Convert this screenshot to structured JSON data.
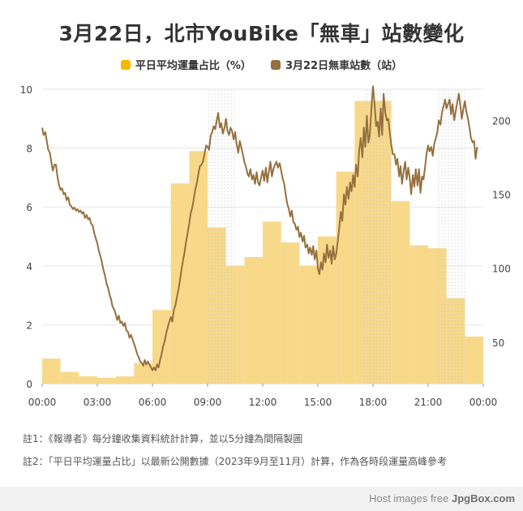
{
  "title": "3月22日，北市YouBike「無車」站數變化",
  "notes": [
    "註1：《報導者》每分鐘收集資料統計計算，並以5分鐘為間隔製圖",
    "註2：「平日平均運量占比」以最新公開數據（2023年9月至11月）計算，作為各時段運量高峰參考"
  ],
  "watermark": {
    "prefix": "Host images free",
    "brand": "JpgBox.com"
  },
  "chart_data": {
    "type": "bar+line",
    "legend_placement": "top-center",
    "colors": {
      "bar": "#f8d98a",
      "bar_legend": "#f5b800",
      "line": "#96703e",
      "grid": "#e5e5e5",
      "shade": "#cfcfcf"
    },
    "x_ticks": [
      "00:00",
      "03:00",
      "06:00",
      "09:00",
      "12:00",
      "15:00",
      "18:00",
      "21:00",
      "00:00"
    ],
    "x_range_hours": [
      0,
      24
    ],
    "y_left": {
      "ticks": [
        0,
        2,
        4,
        6,
        8,
        10
      ],
      "range": [
        0,
        10
      ]
    },
    "y_right": {
      "ticks": [
        50,
        100,
        150,
        200
      ],
      "range": [
        22,
        221
      ]
    },
    "peak_shading_hours": [
      [
        9,
        10.5
      ],
      [
        17.5,
        19
      ],
      [
        21.5,
        23
      ]
    ],
    "series": [
      {
        "name": "平日平均運量占比（%）",
        "axis": "left",
        "type": "bar",
        "hours": [
          0,
          1,
          2,
          3,
          4,
          5,
          6,
          7,
          8,
          9,
          10,
          11,
          12,
          13,
          14,
          15,
          16,
          17,
          18,
          19,
          20,
          21,
          22,
          23
        ],
        "values": [
          0.85,
          0.4,
          0.25,
          0.2,
          0.25,
          0.7,
          2.5,
          6.8,
          7.9,
          5.3,
          4.0,
          4.3,
          5.5,
          4.8,
          4.0,
          5.0,
          7.2,
          9.6,
          9.6,
          6.2,
          4.7,
          4.6,
          2.9,
          1.6
        ]
      },
      {
        "name": "3月22日無車站數（站）",
        "axis": "right",
        "type": "line",
        "points": [
          [
            0,
            195
          ],
          [
            0.08,
            190
          ],
          [
            0.17,
            192
          ],
          [
            0.25,
            186
          ],
          [
            0.33,
            180
          ],
          [
            0.42,
            178
          ],
          [
            0.5,
            172
          ],
          [
            0.58,
            166
          ],
          [
            0.67,
            170
          ],
          [
            0.75,
            170
          ],
          [
            0.83,
            162
          ],
          [
            0.92,
            156
          ],
          [
            1.0,
            153
          ],
          [
            1.08,
            154
          ],
          [
            1.17,
            150
          ],
          [
            1.25,
            151
          ],
          [
            1.33,
            146
          ],
          [
            1.42,
            148
          ],
          [
            1.5,
            143
          ],
          [
            1.58,
            142
          ],
          [
            1.67,
            140
          ],
          [
            1.75,
            141
          ],
          [
            1.83,
            139
          ],
          [
            1.92,
            140
          ],
          [
            2.0,
            138
          ],
          [
            2.08,
            139
          ],
          [
            2.17,
            137
          ],
          [
            2.25,
            138
          ],
          [
            2.33,
            134
          ],
          [
            2.42,
            136
          ],
          [
            2.5,
            133
          ],
          [
            2.58,
            134
          ],
          [
            2.67,
            130
          ],
          [
            2.75,
            129
          ],
          [
            2.83,
            124
          ],
          [
            2.92,
            120
          ],
          [
            3.0,
            117
          ],
          [
            3.08,
            112
          ],
          [
            3.17,
            108
          ],
          [
            3.25,
            104
          ],
          [
            3.33,
            99
          ],
          [
            3.42,
            95
          ],
          [
            3.5,
            90
          ],
          [
            3.58,
            87
          ],
          [
            3.67,
            82
          ],
          [
            3.75,
            79
          ],
          [
            3.83,
            74
          ],
          [
            3.92,
            72
          ],
          [
            4.0,
            69
          ],
          [
            4.08,
            65
          ],
          [
            4.17,
            68
          ],
          [
            4.25,
            63
          ],
          [
            4.33,
            64
          ],
          [
            4.42,
            61
          ],
          [
            4.5,
            63
          ],
          [
            4.58,
            58
          ],
          [
            4.67,
            57
          ],
          [
            4.75,
            53
          ],
          [
            4.83,
            55
          ],
          [
            4.92,
            52
          ],
          [
            5.0,
            49
          ],
          [
            5.08,
            46
          ],
          [
            5.17,
            42
          ],
          [
            5.25,
            40
          ],
          [
            5.33,
            37
          ],
          [
            5.42,
            36
          ],
          [
            5.5,
            34
          ],
          [
            5.58,
            38
          ],
          [
            5.67,
            35
          ],
          [
            5.75,
            37
          ],
          [
            5.83,
            35
          ],
          [
            5.92,
            33
          ],
          [
            6.0,
            31
          ],
          [
            6.08,
            33
          ],
          [
            6.17,
            31
          ],
          [
            6.25,
            35
          ],
          [
            6.33,
            33
          ],
          [
            6.42,
            38
          ],
          [
            6.5,
            42
          ],
          [
            6.58,
            47
          ],
          [
            6.67,
            51
          ],
          [
            6.75,
            56
          ],
          [
            6.83,
            60
          ],
          [
            6.92,
            64
          ],
          [
            7.0,
            67
          ],
          [
            7.08,
            64
          ],
          [
            7.17,
            72
          ],
          [
            7.25,
            75
          ],
          [
            7.33,
            80
          ],
          [
            7.42,
            86
          ],
          [
            7.5,
            92
          ],
          [
            7.58,
            99
          ],
          [
            7.67,
            106
          ],
          [
            7.75,
            111
          ],
          [
            7.83,
            118
          ],
          [
            7.92,
            124
          ],
          [
            8.0,
            130
          ],
          [
            8.08,
            137
          ],
          [
            8.17,
            141
          ],
          [
            8.25,
            147
          ],
          [
            8.33,
            153
          ],
          [
            8.42,
            158
          ],
          [
            8.5,
            164
          ],
          [
            8.58,
            169
          ],
          [
            8.67,
            170
          ],
          [
            8.75,
            172
          ],
          [
            8.83,
            177
          ],
          [
            8.92,
            183
          ],
          [
            9.0,
            182
          ],
          [
            9.08,
            180
          ],
          [
            9.17,
            190
          ],
          [
            9.25,
            192
          ],
          [
            9.33,
            196
          ],
          [
            9.42,
            194
          ],
          [
            9.5,
            200
          ],
          [
            9.58,
            205
          ],
          [
            9.67,
            195
          ],
          [
            9.75,
            198
          ],
          [
            9.83,
            191
          ],
          [
            9.92,
            195
          ],
          [
            10.0,
            201
          ],
          [
            10.08,
            193
          ],
          [
            10.17,
            190
          ],
          [
            10.25,
            195
          ],
          [
            10.33,
            193
          ],
          [
            10.42,
            187
          ],
          [
            10.5,
            192
          ],
          [
            10.58,
            184
          ],
          [
            10.67,
            178
          ],
          [
            10.75,
            186
          ],
          [
            10.83,
            182
          ],
          [
            10.92,
            177
          ],
          [
            11.0,
            172
          ],
          [
            11.08,
            169
          ],
          [
            11.17,
            164
          ],
          [
            11.25,
            162
          ],
          [
            11.33,
            167
          ],
          [
            11.42,
            160
          ],
          [
            11.5,
            163
          ],
          [
            11.58,
            157
          ],
          [
            11.67,
            165
          ],
          [
            11.75,
            158
          ],
          [
            11.83,
            156
          ],
          [
            11.92,
            162
          ],
          [
            12.0,
            166
          ],
          [
            12.08,
            159
          ],
          [
            12.17,
            168
          ],
          [
            12.25,
            158
          ],
          [
            12.33,
            165
          ],
          [
            12.42,
            172
          ],
          [
            12.5,
            162
          ],
          [
            12.58,
            167
          ],
          [
            12.67,
            170
          ],
          [
            12.75,
            172
          ],
          [
            12.83,
            168
          ],
          [
            12.92,
            171
          ],
          [
            13.0,
            166
          ],
          [
            13.08,
            161
          ],
          [
            13.17,
            157
          ],
          [
            13.25,
            150
          ],
          [
            13.33,
            144
          ],
          [
            13.42,
            140
          ],
          [
            13.5,
            135
          ],
          [
            13.58,
            139
          ],
          [
            13.67,
            131
          ],
          [
            13.75,
            130
          ],
          [
            13.83,
            126
          ],
          [
            13.92,
            128
          ],
          [
            14.0,
            121
          ],
          [
            14.08,
            124
          ],
          [
            14.17,
            118
          ],
          [
            14.25,
            122
          ],
          [
            14.33,
            114
          ],
          [
            14.42,
            116
          ],
          [
            14.5,
            110
          ],
          [
            14.58,
            114
          ],
          [
            14.67,
            109
          ],
          [
            14.75,
            115
          ],
          [
            14.83,
            106
          ],
          [
            14.92,
            112
          ],
          [
            15.0,
            100
          ],
          [
            15.08,
            96
          ],
          [
            15.17,
            104
          ],
          [
            15.25,
            99
          ],
          [
            15.33,
            110
          ],
          [
            15.42,
            104
          ],
          [
            15.5,
            116
          ],
          [
            15.58,
            107
          ],
          [
            15.67,
            112
          ],
          [
            15.75,
            103
          ],
          [
            15.83,
            115
          ],
          [
            15.92,
            106
          ],
          [
            16.0,
            110
          ],
          [
            16.08,
            118
          ],
          [
            16.17,
            128
          ],
          [
            16.25,
            138
          ],
          [
            16.33,
            132
          ],
          [
            16.42,
            150
          ],
          [
            16.5,
            143
          ],
          [
            16.58,
            155
          ],
          [
            16.67,
            147
          ],
          [
            16.75,
            158
          ],
          [
            16.83,
            152
          ],
          [
            16.92,
            163
          ],
          [
            17.0,
            155
          ],
          [
            17.08,
            170
          ],
          [
            17.17,
            162
          ],
          [
            17.25,
            180
          ],
          [
            17.33,
            188
          ],
          [
            17.42,
            175
          ],
          [
            17.5,
            195
          ],
          [
            17.58,
            182
          ],
          [
            17.67,
            203
          ],
          [
            17.75,
            185
          ],
          [
            17.83,
            190
          ],
          [
            17.92,
            209
          ],
          [
            18.0,
            223
          ],
          [
            18.08,
            212
          ],
          [
            18.17,
            196
          ],
          [
            18.25,
            199
          ],
          [
            18.33,
            189
          ],
          [
            18.42,
            208
          ],
          [
            18.5,
            190
          ],
          [
            18.58,
            218
          ],
          [
            18.67,
            205
          ],
          [
            18.75,
            200
          ],
          [
            18.83,
            201
          ],
          [
            18.92,
            191
          ],
          [
            19.0,
            183
          ],
          [
            19.08,
            177
          ],
          [
            19.17,
            177
          ],
          [
            19.25,
            170
          ],
          [
            19.33,
            174
          ],
          [
            19.42,
            162
          ],
          [
            19.5,
            169
          ],
          [
            19.58,
            157
          ],
          [
            19.67,
            166
          ],
          [
            19.75,
            172
          ],
          [
            19.83,
            160
          ],
          [
            19.92,
            168
          ],
          [
            20.0,
            161
          ],
          [
            20.08,
            150
          ],
          [
            20.17,
            163
          ],
          [
            20.25,
            155
          ],
          [
            20.33,
            167
          ],
          [
            20.42,
            156
          ],
          [
            20.5,
            167
          ],
          [
            20.58,
            151
          ],
          [
            20.67,
            162
          ],
          [
            20.75,
            160
          ],
          [
            20.83,
            168
          ],
          [
            20.92,
            178
          ],
          [
            21.0,
            183
          ],
          [
            21.08,
            179
          ],
          [
            21.17,
            182
          ],
          [
            21.25,
            176
          ],
          [
            21.33,
            184
          ],
          [
            21.42,
            188
          ],
          [
            21.5,
            192
          ],
          [
            21.58,
            200
          ],
          [
            21.67,
            197
          ],
          [
            21.75,
            205
          ],
          [
            21.83,
            209
          ],
          [
            21.92,
            214
          ],
          [
            22.0,
            208
          ],
          [
            22.08,
            211
          ],
          [
            22.17,
            214
          ],
          [
            22.25,
            204
          ],
          [
            22.33,
            211
          ],
          [
            22.42,
            200
          ],
          [
            22.5,
            206
          ],
          [
            22.58,
            212
          ],
          [
            22.67,
            218
          ],
          [
            22.75,
            210
          ],
          [
            22.83,
            201
          ],
          [
            22.92,
            208
          ],
          [
            23.0,
            213
          ],
          [
            23.08,
            206
          ],
          [
            23.17,
            201
          ],
          [
            23.25,
            195
          ],
          [
            23.33,
            188
          ],
          [
            23.42,
            185
          ],
          [
            23.5,
            186
          ],
          [
            23.58,
            174
          ],
          [
            23.67,
            182
          ]
        ]
      }
    ]
  }
}
